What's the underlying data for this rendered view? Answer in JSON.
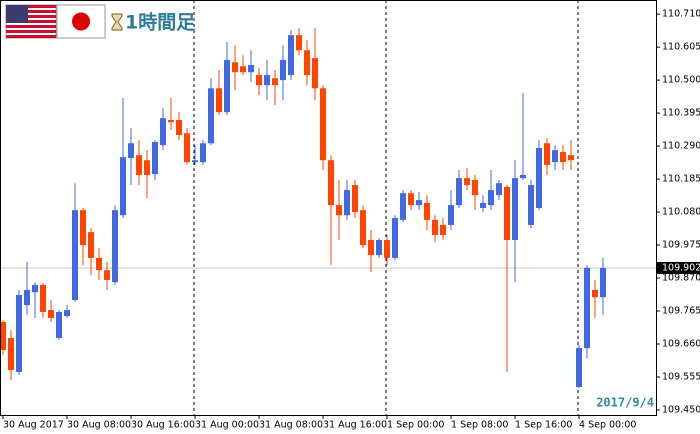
{
  "chart_data": {
    "type": "candlestick",
    "title": "1時間足",
    "annotation": "2017/9/4",
    "categories": [
      "30 Aug 2017",
      null,
      null,
      null,
      null,
      null,
      null,
      null,
      "30 Aug 08:00",
      null,
      null,
      null,
      null,
      null,
      null,
      null,
      "30 Aug 16:00",
      null,
      null,
      null,
      null,
      null,
      null,
      null,
      "31 Aug 00:00",
      null,
      null,
      null,
      null,
      null,
      null,
      null,
      "31 Aug 08:00",
      null,
      null,
      null,
      null,
      null,
      null,
      null,
      "31 Aug 16:00",
      null,
      null,
      null,
      null,
      null,
      null,
      null,
      "1 Sep 00:00",
      null,
      null,
      null,
      null,
      null,
      null,
      null,
      "1 Sep 08:00",
      null,
      null,
      null,
      null,
      null,
      null,
      null,
      "1 Sep 16:00",
      null,
      null,
      null,
      null,
      null,
      null,
      null,
      "4 Sep 00:00",
      null,
      null,
      null
    ],
    "ohlc": [
      [
        109.73,
        109.736,
        109.625,
        109.641
      ],
      [
        109.679,
        109.704,
        109.545,
        109.577
      ],
      [
        109.571,
        109.832,
        109.561,
        109.816
      ],
      [
        109.784,
        109.921,
        109.752,
        109.832
      ],
      [
        109.825,
        109.857,
        109.743,
        109.848
      ],
      [
        109.848,
        109.854,
        109.743,
        109.762
      ],
      [
        109.768,
        109.8,
        109.73,
        109.743
      ],
      [
        109.679,
        109.768,
        109.673,
        109.762
      ],
      [
        109.749,
        109.784,
        109.743,
        109.768
      ],
      [
        109.8,
        110.172,
        109.794,
        110.086
      ],
      [
        110.086,
        110.093,
        109.911,
        109.975
      ],
      [
        110.016,
        110.029,
        109.879,
        109.934
      ],
      [
        109.934,
        109.965,
        109.864,
        109.895
      ],
      [
        109.895,
        109.921,
        109.832,
        109.864
      ],
      [
        109.857,
        110.102,
        109.848,
        110.086
      ],
      [
        110.07,
        110.443,
        110.061,
        110.255
      ],
      [
        110.252,
        110.347,
        110.166,
        110.299
      ],
      [
        110.261,
        110.309,
        110.166,
        110.198
      ],
      [
        110.245,
        110.277,
        110.124,
        110.198
      ],
      [
        110.201,
        110.309,
        110.182,
        110.303
      ],
      [
        110.293,
        110.411,
        110.277,
        110.379
      ],
      [
        110.373,
        110.443,
        110.341,
        110.366
      ],
      [
        110.373,
        110.398,
        110.309,
        110.325
      ],
      [
        110.331,
        110.347,
        110.23,
        110.239
      ],
      [
        110.239,
        110.293,
        110.23,
        110.245
      ],
      [
        110.239,
        110.309,
        110.23,
        110.299
      ],
      [
        110.299,
        110.506,
        110.293,
        110.474
      ],
      [
        110.474,
        110.532,
        110.389,
        110.398
      ],
      [
        110.398,
        110.621,
        110.389,
        110.564
      ],
      [
        110.557,
        110.611,
        110.468,
        110.525
      ],
      [
        110.544,
        110.579,
        110.516,
        110.525
      ],
      [
        110.525,
        110.595,
        110.494,
        110.548
      ],
      [
        110.516,
        110.538,
        110.452,
        110.484
      ],
      [
        110.484,
        110.564,
        110.436,
        110.516
      ],
      [
        110.506,
        110.532,
        110.42,
        110.484
      ],
      [
        110.5,
        110.611,
        110.436,
        110.564
      ],
      [
        110.516,
        110.659,
        110.5,
        110.643
      ],
      [
        110.643,
        110.665,
        110.579,
        110.595
      ],
      [
        110.595,
        110.627,
        110.484,
        110.516
      ],
      [
        110.57,
        110.665,
        110.436,
        110.474
      ],
      [
        110.474,
        110.484,
        110.214,
        110.245
      ],
      [
        110.245,
        110.261,
        109.911,
        110.102
      ],
      [
        110.102,
        110.182,
        109.991,
        110.07
      ],
      [
        110.07,
        110.182,
        110.055,
        110.15
      ],
      [
        110.166,
        110.182,
        110.061,
        110.08
      ],
      [
        110.086,
        110.102,
        109.965,
        109.975
      ],
      [
        109.991,
        110.023,
        109.889,
        109.943
      ],
      [
        109.943,
        109.997,
        109.934,
        109.991
      ],
      [
        109.991,
        110.007,
        109.911,
        109.934
      ],
      [
        109.934,
        110.07,
        109.927,
        110.061
      ],
      [
        110.055,
        110.15,
        110.048,
        110.14
      ],
      [
        110.14,
        110.15,
        110.086,
        110.102
      ],
      [
        110.102,
        110.144,
        110.086,
        110.118
      ],
      [
        110.109,
        110.134,
        110.023,
        110.055
      ],
      [
        110.055,
        110.07,
        109.984,
        110.007
      ],
      [
        110.039,
        110.061,
        109.991,
        110.007
      ],
      [
        110.039,
        110.15,
        110.023,
        110.102
      ],
      [
        110.102,
        110.214,
        110.093,
        110.188
      ],
      [
        110.188,
        110.22,
        110.15,
        110.166
      ],
      [
        110.182,
        110.198,
        110.086,
        110.134
      ],
      [
        110.093,
        110.134,
        110.08,
        110.109
      ],
      [
        110.102,
        110.214,
        110.086,
        110.15
      ],
      [
        110.134,
        110.182,
        110.118,
        110.172
      ],
      [
        110.16,
        110.166,
        109.571,
        109.991
      ],
      [
        109.991,
        110.245,
        109.857,
        110.188
      ],
      [
        110.188,
        110.459,
        110.182,
        110.198
      ],
      [
        110.039,
        110.182,
        110.029,
        110.166
      ],
      [
        110.093,
        110.309,
        110.086,
        110.284
      ],
      [
        110.299,
        110.315,
        110.198,
        110.23
      ],
      [
        110.239,
        110.293,
        110.214,
        110.277
      ],
      [
        110.271,
        110.293,
        110.214,
        110.239
      ],
      [
        110.261,
        110.309,
        110.214,
        110.245
      ],
      [
        109.523,
        109.657,
        109.52,
        109.647
      ],
      [
        109.647,
        109.911,
        109.615,
        109.902
      ],
      [
        109.832,
        109.864,
        109.743,
        109.809
      ],
      [
        109.809,
        109.934,
        109.752,
        109.902
      ]
    ],
    "up_color": "#4169e1",
    "down_color": "#ff4500",
    "last_price": 109.902,
    "ylim": [
      109.434,
      110.755
    ],
    "yticks": [
      {
        "value": 110.71,
        "label": "110.710"
      },
      110.605,
      {
        "value": 110.5,
        "label": "110.500"
      },
      110.395,
      {
        "value": 110.29,
        "label": "110.290"
      },
      110.185,
      {
        "value": 110.08,
        "label": "110.080"
      },
      109.975,
      {
        "value": 109.87,
        "label": "109.870"
      },
      109.765,
      {
        "value": 109.66,
        "label": "109.660"
      },
      109.555,
      {
        "value": 109.45,
        "label": "109.450"
      }
    ]
  }
}
